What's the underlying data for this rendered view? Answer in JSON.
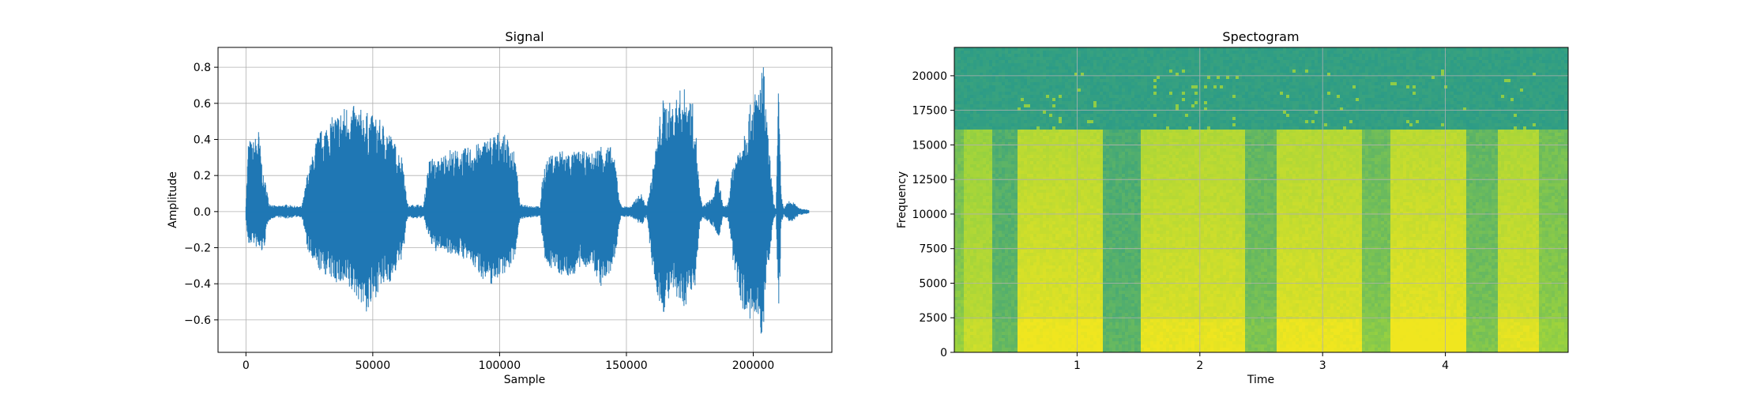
{
  "chart_data": [
    {
      "type": "line",
      "title": "Signal",
      "xlabel": "Sample",
      "ylabel": "Amplitude",
      "xlim": [
        -11000,
        231000
      ],
      "ylim": [
        -0.78,
        0.91
      ],
      "grid": true,
      "xticks": [
        0,
        50000,
        100000,
        150000,
        200000
      ],
      "xtick_labels": [
        "0",
        "50000",
        "100000",
        "150000",
        "200000"
      ],
      "yticks": [
        -0.6,
        -0.4,
        -0.2,
        0.0,
        0.2,
        0.4,
        0.6,
        0.8
      ],
      "ytick_labels": [
        "−0.6",
        "−0.4",
        "−0.2",
        "0.0",
        "0.2",
        "0.4",
        "0.6",
        "0.8"
      ],
      "color": "#1f77b4",
      "envelope": {
        "x": [
          0,
          1000,
          2500,
          5000,
          7000,
          8000,
          9000,
          12000,
          16000,
          20000,
          22000,
          23000,
          24000,
          26000,
          28000,
          32000,
          36000,
          40000,
          44000,
          48000,
          52000,
          56000,
          58000,
          60000,
          62000,
          63000,
          64000,
          66000,
          68000,
          70000,
          72000,
          74000,
          75000,
          76000,
          78000,
          80000,
          84000,
          88000,
          92000,
          96000,
          100000,
          104000,
          106000,
          107000,
          108000,
          110000,
          114000,
          116000,
          117000,
          118000,
          120000,
          124000,
          128000,
          132000,
          136000,
          140000,
          144000,
          146000,
          147000,
          148000,
          150000,
          152000,
          154000,
          156000,
          157000,
          158000,
          160000,
          162000,
          164000,
          168000,
          172000,
          175000,
          177000,
          178000,
          179000,
          180000,
          184000,
          186000,
          187000,
          188000,
          190000,
          192000,
          194000,
          196000,
          198000,
          200000,
          202000,
          204000,
          205000,
          206000,
          208000,
          209000,
          210000,
          211000,
          212000,
          214000,
          216000,
          218000,
          222000
        ],
        "upper": [
          0.05,
          0.42,
          0.38,
          0.46,
          0.18,
          0.16,
          0.05,
          0.03,
          0.04,
          0.03,
          0.03,
          0.1,
          0.2,
          0.3,
          0.42,
          0.5,
          0.55,
          0.6,
          0.58,
          0.55,
          0.52,
          0.47,
          0.4,
          0.35,
          0.3,
          0.12,
          0.03,
          0.04,
          0.04,
          0.03,
          0.28,
          0.32,
          0.25,
          0.3,
          0.32,
          0.35,
          0.34,
          0.36,
          0.38,
          0.42,
          0.45,
          0.4,
          0.32,
          0.2,
          0.04,
          0.04,
          0.03,
          0.03,
          0.2,
          0.28,
          0.31,
          0.35,
          0.33,
          0.34,
          0.32,
          0.38,
          0.36,
          0.25,
          0.1,
          0.03,
          0.03,
          0.03,
          0.08,
          0.1,
          0.06,
          0.03,
          0.2,
          0.4,
          0.63,
          0.6,
          0.7,
          0.65,
          0.56,
          0.3,
          0.1,
          0.03,
          0.08,
          0.2,
          0.14,
          0.03,
          0.04,
          0.28,
          0.35,
          0.45,
          0.55,
          0.65,
          0.7,
          0.83,
          0.6,
          0.4,
          0.05,
          0.02,
          0.72,
          0.1,
          0.02,
          0.06,
          0.05,
          0.02,
          0.01
        ],
        "lower": [
          -0.05,
          -0.2,
          -0.17,
          -0.22,
          -0.23,
          -0.12,
          -0.05,
          -0.03,
          -0.04,
          -0.03,
          -0.03,
          -0.1,
          -0.2,
          -0.28,
          -0.32,
          -0.36,
          -0.4,
          -0.44,
          -0.48,
          -0.58,
          -0.45,
          -0.4,
          -0.38,
          -0.3,
          -0.25,
          -0.1,
          -0.03,
          -0.04,
          -0.04,
          -0.03,
          -0.15,
          -0.2,
          -0.24,
          -0.2,
          -0.22,
          -0.23,
          -0.25,
          -0.28,
          -0.35,
          -0.42,
          -0.36,
          -0.32,
          -0.25,
          -0.15,
          -0.04,
          -0.04,
          -0.03,
          -0.03,
          -0.18,
          -0.3,
          -0.31,
          -0.35,
          -0.37,
          -0.32,
          -0.3,
          -0.42,
          -0.34,
          -0.22,
          -0.08,
          -0.03,
          -0.03,
          -0.03,
          -0.06,
          -0.08,
          -0.05,
          -0.03,
          -0.3,
          -0.45,
          -0.58,
          -0.46,
          -0.55,
          -0.48,
          -0.42,
          -0.25,
          -0.08,
          -0.03,
          -0.08,
          -0.15,
          -0.12,
          -0.03,
          -0.04,
          -0.28,
          -0.42,
          -0.55,
          -0.62,
          -0.6,
          -0.66,
          -0.72,
          -0.4,
          -0.3,
          -0.05,
          -0.02,
          -0.7,
          -0.08,
          -0.02,
          -0.06,
          -0.05,
          -0.02,
          -0.01
        ]
      }
    },
    {
      "type": "heatmap",
      "title": "Spectogram",
      "xlabel": "Time",
      "ylabel": "Frequency",
      "xlim": [
        0,
        5.0
      ],
      "ylim": [
        0,
        22050
      ],
      "grid": true,
      "colormap": "viridis",
      "xticks": [
        1,
        2,
        3,
        4
      ],
      "xtick_labels": [
        "1",
        "2",
        "3",
        "4"
      ],
      "yticks": [
        0,
        2500,
        5000,
        7500,
        10000,
        12500,
        15000,
        17500,
        20000
      ],
      "ytick_labels": [
        "0",
        "2500",
        "5000",
        "7500",
        "10000",
        "12500",
        "15000",
        "17500",
        "20000"
      ],
      "color_low": "#27998a",
      "color_mid": "#9ad23e",
      "color_high": "#f0e61f",
      "segments": [
        {
          "start": 0.0,
          "end": 0.08,
          "level": 0.45
        },
        {
          "start": 0.08,
          "end": 0.32,
          "level": 0.7
        },
        {
          "start": 0.32,
          "end": 0.52,
          "level": 0.25
        },
        {
          "start": 0.52,
          "end": 1.22,
          "level": 0.92
        },
        {
          "start": 1.22,
          "end": 1.53,
          "level": 0.22
        },
        {
          "start": 1.53,
          "end": 2.38,
          "level": 0.88
        },
        {
          "start": 2.38,
          "end": 2.62,
          "level": 0.35
        },
        {
          "start": 2.62,
          "end": 3.32,
          "level": 0.9
        },
        {
          "start": 3.32,
          "end": 3.55,
          "level": 0.4
        },
        {
          "start": 3.55,
          "end": 4.18,
          "level": 0.95
        },
        {
          "start": 4.18,
          "end": 4.42,
          "level": 0.35
        },
        {
          "start": 4.42,
          "end": 4.76,
          "level": 0.85
        },
        {
          "start": 4.76,
          "end": 5.0,
          "level": 0.45
        }
      ]
    }
  ]
}
